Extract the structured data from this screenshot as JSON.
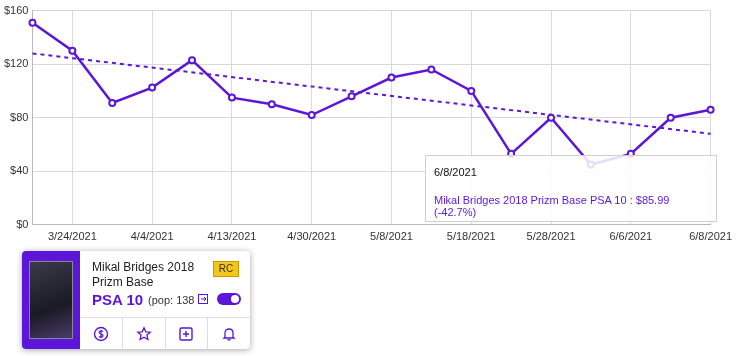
{
  "chart_data": {
    "type": "line",
    "categories": [
      null,
      "3/24/2021",
      null,
      "4/4/2021",
      null,
      "4/13/2021",
      null,
      "4/30/2021",
      null,
      "5/8/2021",
      null,
      "5/18/2021",
      null,
      "5/28/2021",
      null,
      "6/6/2021",
      null,
      "6/8/2021"
    ],
    "series": [
      {
        "name": "Mikal Bridges 2018 Prizm Base PSA 10",
        "color": "#5b16d9",
        "marker": "circle",
        "line_style": "solid",
        "values": [
          151,
          130,
          91,
          102.5,
          123,
          95,
          90,
          82,
          96,
          110,
          116,
          100,
          53,
          80,
          45,
          53,
          80,
          85.99
        ]
      },
      {
        "color": "#5b16d9",
        "marker": "none",
        "line_style": "dashed",
        "values": [
          128,
          null,
          null,
          null,
          null,
          null,
          null,
          null,
          null,
          null,
          null,
          null,
          null,
          null,
          null,
          null,
          null,
          68
        ]
      }
    ],
    "ylim": [
      0,
      160
    ],
    "yticks": [
      {
        "value": 0,
        "label": "$0"
      },
      {
        "value": 40,
        "label": "$40"
      },
      {
        "value": 80,
        "label": "$80"
      },
      {
        "value": 120,
        "label": "$120"
      },
      {
        "value": 160,
        "label": "$160"
      }
    ],
    "grid": true,
    "annotations": [
      {
        "title": "6/8/2021",
        "text": "Mikal Bridges 2018 Prizm Base PSA 10 : $85.99 (-42.7%)"
      }
    ]
  },
  "card": {
    "title": "Mikal Bridges 2018 Prizm Base",
    "badge": "RC",
    "grade": "PSA 10",
    "population": "(pop: 138"
  }
}
